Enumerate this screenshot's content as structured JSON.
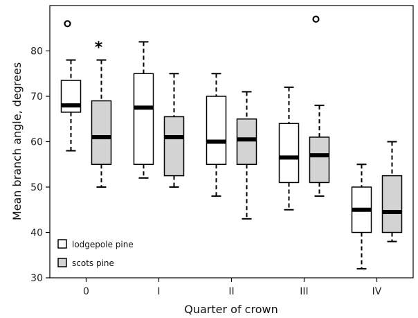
{
  "chart_data": {
    "type": "boxplot",
    "xlabel": "Quarter of crown",
    "ylabel": "Mean branch angle, degrees",
    "ylim": [
      30,
      90
    ],
    "yticks": [
      30,
      40,
      50,
      60,
      70,
      80
    ],
    "categories": [
      "0",
      "I",
      "II",
      "III",
      "IV"
    ],
    "legend_position": "bottom-left",
    "grid": false,
    "series": [
      {
        "name": "lodgepole pine",
        "color": "#ffffff",
        "boxes": [
          {
            "whisker_low": 58,
            "q1": 66.5,
            "median": 68,
            "q3": 73.5,
            "whisker_high": 78,
            "outliers": [
              86
            ]
          },
          {
            "whisker_low": 52,
            "q1": 55,
            "median": 67.5,
            "q3": 75,
            "whisker_high": 82,
            "outliers": []
          },
          {
            "whisker_low": 48,
            "q1": 55,
            "median": 60,
            "q3": 70,
            "whisker_high": 75,
            "outliers": []
          },
          {
            "whisker_low": 45,
            "q1": 51,
            "median": 56.5,
            "q3": 64,
            "whisker_high": 72,
            "outliers": []
          },
          {
            "whisker_low": 32,
            "q1": 40,
            "median": 45,
            "q3": 50,
            "whisker_high": 55,
            "outliers": []
          }
        ]
      },
      {
        "name": "scots pine",
        "color": "#d3d3d3",
        "boxes": [
          {
            "whisker_low": 50,
            "q1": 55,
            "median": 61,
            "q3": 69,
            "whisker_high": 78,
            "outliers": []
          },
          {
            "whisker_low": 50,
            "q1": 52.5,
            "median": 61,
            "q3": 65.5,
            "whisker_high": 75,
            "outliers": []
          },
          {
            "whisker_low": 43,
            "q1": 55,
            "median": 60.5,
            "q3": 65,
            "whisker_high": 71,
            "outliers": []
          },
          {
            "whisker_low": 48,
            "q1": 51,
            "median": 57,
            "q3": 61,
            "whisker_high": 68,
            "outliers": [
              87
            ]
          },
          {
            "whisker_low": 38,
            "q1": 40,
            "median": 44.5,
            "q3": 52.5,
            "whisker_high": 60,
            "outliers": []
          }
        ]
      }
    ],
    "annotations": [
      {
        "text": "*",
        "category": "0",
        "series": "scots pine",
        "y": 81.5
      }
    ]
  }
}
